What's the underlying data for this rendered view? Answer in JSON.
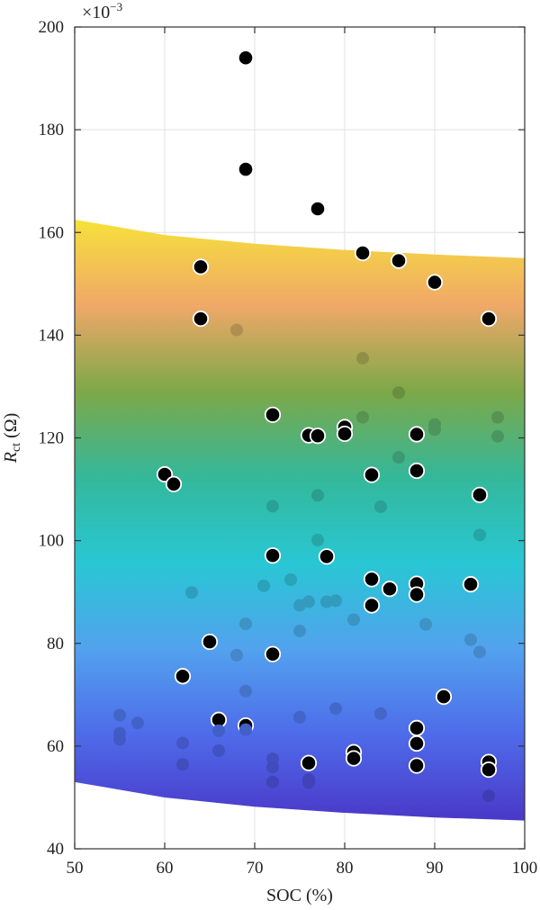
{
  "chart_data": {
    "type": "scatter",
    "xlabel": "SOC (%)",
    "ylabel_main": "R",
    "ylabel_sub": "ct",
    "ylabel_unit": " (Ω)",
    "y_multiplier_base": "×10",
    "y_multiplier_exp": "−3",
    "xlim": [
      50,
      100
    ],
    "ylim": [
      40,
      200
    ],
    "xticks": [
      50,
      60,
      70,
      80,
      90,
      100
    ],
    "yticks": [
      40,
      60,
      80,
      100,
      120,
      140,
      160,
      180,
      200
    ],
    "grid": true,
    "band": {
      "x": [
        50,
        60,
        70,
        80,
        90,
        100
      ],
      "upper": [
        162.5,
        159.5,
        157.8,
        156.6,
        155.7,
        155.0
      ],
      "lower": [
        53.0,
        50.0,
        48.2,
        47.0,
        46.1,
        45.5
      ],
      "color_low": "#5b3fb8",
      "color_high": "#f9e32c"
    },
    "colors": {
      "outlier": "#000000",
      "stops": [
        "#4a38c8",
        "#4e6bea",
        "#52a2ee",
        "#28c7d4",
        "#34b89a",
        "#7da848",
        "#f0a868",
        "#f6e13a"
      ]
    },
    "series": [
      {
        "marker": "black",
        "points": [
          [
            69,
            194
          ],
          [
            69,
            172.3
          ],
          [
            77,
            164.6
          ],
          [
            82,
            156
          ],
          [
            86,
            154.5
          ],
          [
            90,
            150.3
          ],
          [
            64,
            153.3
          ],
          [
            64,
            143.2
          ],
          [
            96,
            143.2
          ],
          [
            72,
            124.5
          ],
          [
            76,
            120.5
          ],
          [
            77,
            120.4
          ],
          [
            80,
            122.1
          ],
          [
            80,
            120.8
          ],
          [
            88,
            120.7
          ],
          [
            60,
            112.9
          ],
          [
            61,
            111
          ],
          [
            83,
            112.8
          ],
          [
            88,
            113.6
          ],
          [
            95,
            108.9
          ],
          [
            72,
            97.1
          ],
          [
            78,
            96.9
          ],
          [
            83,
            92.5
          ],
          [
            85,
            90.6
          ],
          [
            88,
            91.6
          ],
          [
            88,
            89.5
          ],
          [
            94,
            91.5
          ],
          [
            83,
            87.4
          ],
          [
            65,
            80.3
          ],
          [
            72,
            77.9
          ],
          [
            62,
            73.6
          ],
          [
            91,
            69.6
          ],
          [
            66,
            65.1
          ],
          [
            69,
            64
          ],
          [
            88,
            63.5
          ],
          [
            88,
            60.5
          ],
          [
            76,
            56.7
          ],
          [
            81,
            58.8
          ],
          [
            81,
            57.6
          ],
          [
            88,
            56.2
          ],
          [
            96,
            56.9
          ],
          [
            96,
            55.4
          ]
        ]
      },
      {
        "marker": "colored",
        "points": [
          [
            68,
            141
          ],
          [
            82,
            135.5
          ],
          [
            86,
            128.8
          ],
          [
            82,
            124
          ],
          [
            90,
            122.6
          ],
          [
            90,
            121.6
          ],
          [
            97,
            124
          ],
          [
            97,
            120.3
          ],
          [
            86,
            116.2
          ],
          [
            72,
            106.7
          ],
          [
            77,
            108.8
          ],
          [
            84,
            106.6
          ],
          [
            77,
            100.1
          ],
          [
            95,
            101.1
          ],
          [
            74,
            92.4
          ],
          [
            71,
            91.2
          ],
          [
            63,
            89.9
          ],
          [
            76,
            88.1
          ],
          [
            78,
            88.1
          ],
          [
            79,
            88.3
          ],
          [
            75,
            87.4
          ],
          [
            69,
            83.8
          ],
          [
            75,
            82.4
          ],
          [
            81,
            84.6
          ],
          [
            89,
            83.7
          ],
          [
            68,
            77.7
          ],
          [
            94,
            80.7
          ],
          [
            95,
            78.3
          ],
          [
            69,
            70.7
          ],
          [
            55,
            66
          ],
          [
            57,
            64.5
          ],
          [
            66,
            63
          ],
          [
            69,
            63.2
          ],
          [
            75,
            65.6
          ],
          [
            79,
            67.3
          ],
          [
            84,
            66.3
          ],
          [
            55,
            62.5
          ],
          [
            55,
            61.3
          ],
          [
            62,
            60.6
          ],
          [
            66,
            59.1
          ],
          [
            62,
            56.4
          ],
          [
            72,
            57.5
          ],
          [
            72,
            55.9
          ],
          [
            72,
            53
          ],
          [
            76,
            53.5
          ],
          [
            76,
            52.9
          ],
          [
            96,
            50.3
          ]
        ]
      }
    ]
  }
}
